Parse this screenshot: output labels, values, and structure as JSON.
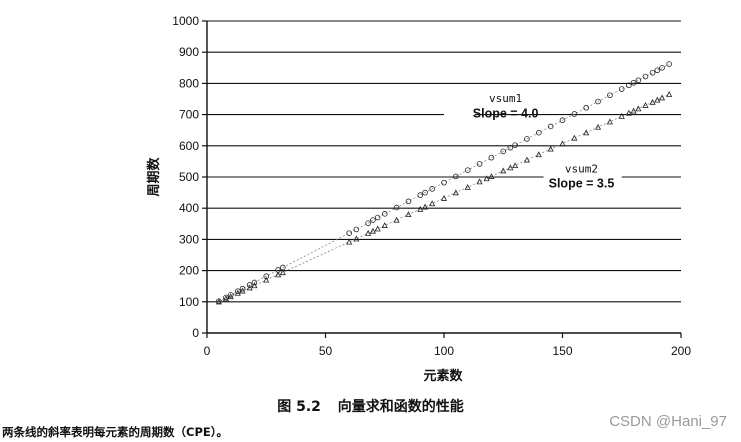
{
  "chart_data": {
    "type": "scatter",
    "xlabel": "元素数",
    "ylabel": "周期数",
    "xlim": [
      0,
      200
    ],
    "ylim": [
      0,
      1000
    ],
    "x_ticks": [
      0,
      50,
      100,
      150,
      200
    ],
    "y_ticks": [
      0,
      100,
      200,
      300,
      400,
      500,
      600,
      700,
      800,
      900,
      1000
    ],
    "grid": "horizontal",
    "series": [
      {
        "name": "vsum1",
        "slope_label": "Slope = 4.0",
        "x": [
          5,
          8,
          10,
          13,
          15,
          18,
          20,
          25,
          30,
          32,
          60,
          63,
          68,
          70,
          72,
          75,
          80,
          85,
          90,
          92,
          95,
          100,
          105,
          110,
          115,
          120,
          125,
          128,
          130,
          135,
          140,
          145,
          150,
          155,
          160,
          165,
          170,
          175,
          178,
          180,
          182,
          185,
          188,
          190,
          192,
          195
        ],
        "y": [
          102,
          114,
          122,
          134,
          142,
          154,
          162,
          182,
          202,
          210,
          320,
          332,
          352,
          362,
          370,
          382,
          402,
          422,
          442,
          450,
          462,
          482,
          502,
          522,
          542,
          562,
          582,
          594,
          602,
          622,
          642,
          662,
          682,
          702,
          722,
          742,
          762,
          782,
          794,
          802,
          810,
          822,
          834,
          842,
          850,
          862
        ]
      },
      {
        "name": "vsum2",
        "slope_label": "Slope = 3.5",
        "x": [
          5,
          8,
          10,
          13,
          15,
          18,
          20,
          25,
          30,
          32,
          60,
          63,
          68,
          70,
          72,
          75,
          80,
          85,
          90,
          92,
          95,
          100,
          105,
          110,
          115,
          118,
          120,
          125,
          128,
          130,
          135,
          140,
          145,
          150,
          155,
          160,
          165,
          170,
          175,
          178,
          180,
          182,
          185,
          188,
          190,
          192,
          195
        ],
        "y": [
          100,
          110,
          117,
          128,
          135,
          145,
          152,
          170,
          187,
          194,
          292,
          302,
          320,
          327,
          334,
          345,
          362,
          380,
          397,
          404,
          415,
          432,
          450,
          467,
          485,
          495,
          502,
          520,
          530,
          537,
          555,
          572,
          590,
          607,
          625,
          642,
          660,
          677,
          695,
          705,
          712,
          719,
          730,
          740,
          747,
          754,
          765
        ]
      }
    ]
  },
  "caption": {
    "figure_number": "图 5.2",
    "title": "向量求和函数的性能"
  },
  "note": "两条线的斜率表明每元素的周期数（CPE）。",
  "watermark": "CSDN @Hani_97"
}
